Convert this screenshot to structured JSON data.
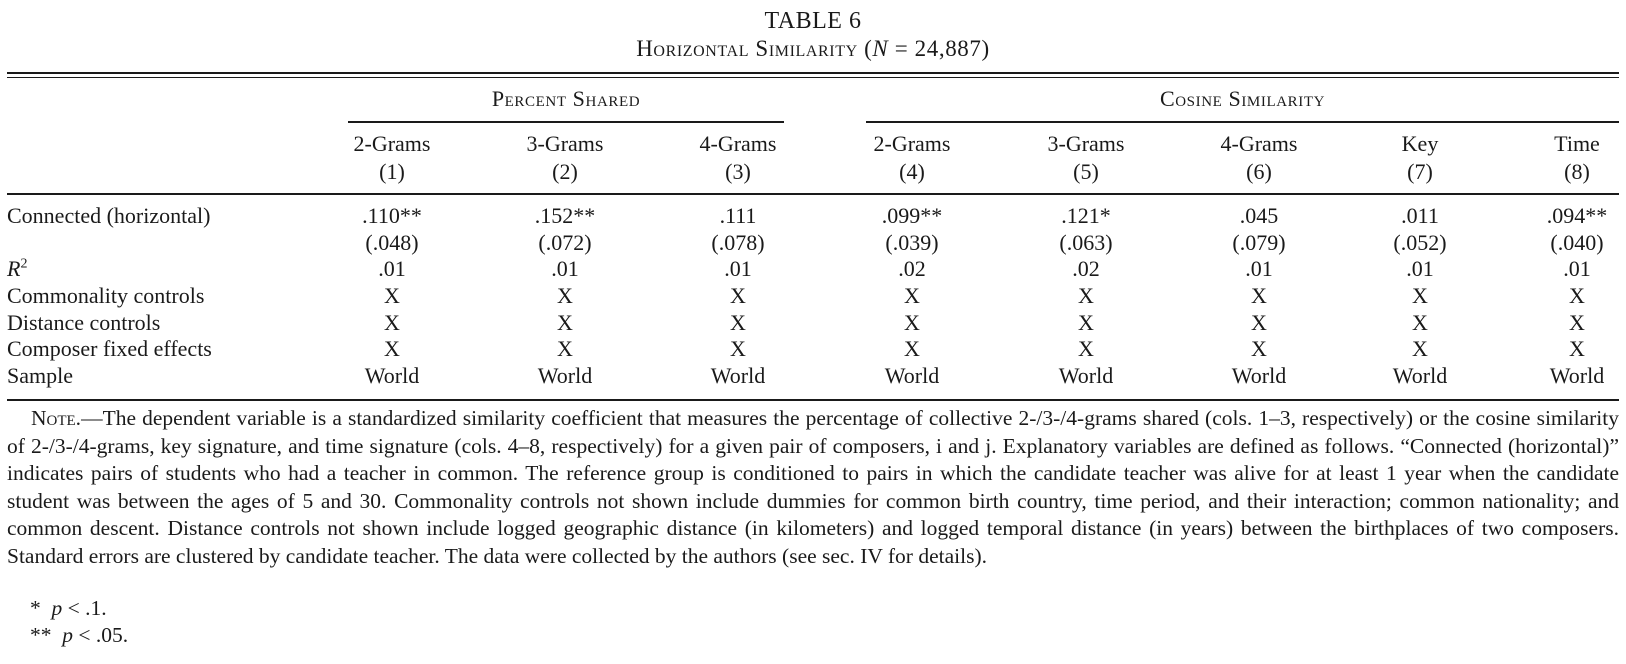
{
  "table": {
    "label": "TABLE 6",
    "title_text": "Horizontal Similarity",
    "title_n_symbol": "N",
    "title_n_value": "24,887",
    "groups": [
      "Percent Shared",
      "Cosine Similarity"
    ],
    "columns": [
      {
        "name": "2-Grams",
        "num": "(1)"
      },
      {
        "name": "3-Grams",
        "num": "(2)"
      },
      {
        "name": "4-Grams",
        "num": "(3)"
      },
      {
        "name": "2-Grams",
        "num": "(4)"
      },
      {
        "name": "3-Grams",
        "num": "(5)"
      },
      {
        "name": "4-Grams",
        "num": "(6)"
      },
      {
        "name": "Key",
        "num": "(7)"
      },
      {
        "name": "Time",
        "num": "(8)"
      }
    ],
    "rows": {
      "connected": {
        "label": "Connected (horizontal)",
        "values": [
          ".110**",
          ".152**",
          ".111",
          ".099**",
          ".121*",
          ".045",
          ".011",
          ".094**"
        ]
      },
      "se": {
        "values": [
          "(.048)",
          "(.072)",
          "(.078)",
          "(.039)",
          "(.063)",
          "(.079)",
          "(.052)",
          "(.040)"
        ]
      },
      "r2": {
        "label": "R",
        "values": [
          ".01",
          ".01",
          ".01",
          ".02",
          ".02",
          ".01",
          ".01",
          ".01"
        ]
      },
      "commonality": {
        "label": "Commonality controls",
        "values": [
          "X",
          "X",
          "X",
          "X",
          "X",
          "X",
          "X",
          "X"
        ]
      },
      "distance": {
        "label": "Distance controls",
        "values": [
          "X",
          "X",
          "X",
          "X",
          "X",
          "X",
          "X",
          "X"
        ]
      },
      "composer_fe": {
        "label": "Composer fixed effects",
        "values": [
          "X",
          "X",
          "X",
          "X",
          "X",
          "X",
          "X",
          "X"
        ]
      },
      "sample": {
        "label": "Sample",
        "values": [
          "World",
          "World",
          "World",
          "World",
          "World",
          "World",
          "World",
          "World"
        ]
      }
    }
  },
  "note": {
    "lead": "Note.",
    "text": "—The dependent variable is a standardized similarity coefficient that measures the percentage of collective 2-/3-/4-grams shared (cols. 1–3, respectively) or the cosine similarity of 2-/3-/4-grams, key signature, and time signature (cols. 4–8, respectively) for a given pair of composers, i and j. Explanatory variables are defined as follows. “Connected (horizontal)” indicates pairs of students who had a teacher in common. The reference group is conditioned to pairs in which the candidate teacher was alive for at least 1 year when the candidate student was between the ages of 5 and 30. Commonality controls not shown include dummies for common birth country, time period, and their interaction; common nationality; and common descent. Distance controls not shown include logged geographic distance (in kilometers) and logged temporal distance (in years) between the birthplaces of two composers. Standard errors are clustered by candidate teacher. The data were collected by the authors (see sec. IV for details).",
    "footnotes": [
      {
        "mark": "*",
        "sym": "p",
        "text": "< .1."
      },
      {
        "mark": "**",
        "sym": "p",
        "text": "< .05."
      }
    ]
  }
}
